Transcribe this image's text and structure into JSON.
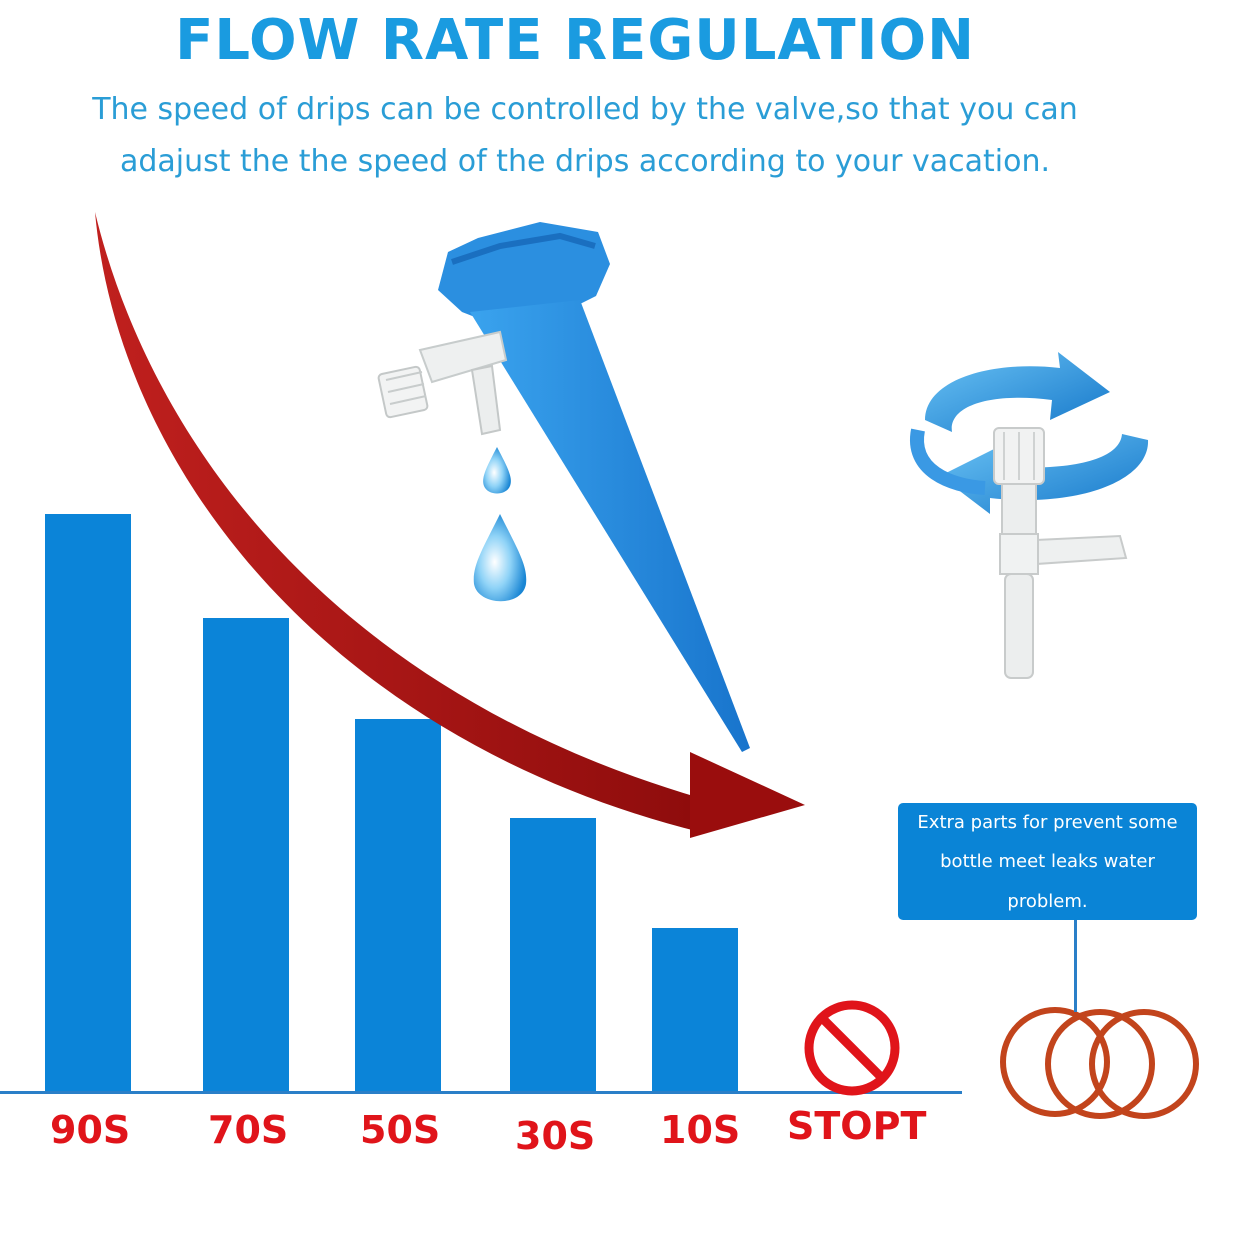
{
  "header": {
    "title": "FLOW RATE REGULATION",
    "subtitle_line1": "The speed of drips can be controlled by the valve,so that you can",
    "subtitle_line2": "adajust the the speed of the drips according to your vacation."
  },
  "chart": {
    "labels": [
      "90S",
      "70S",
      "50S",
      "30S",
      "10S",
      "STOPT"
    ]
  },
  "callout": {
    "line1": "Extra parts for prevent some",
    "line2": "bottle meet leaks water",
    "line3": "problem."
  },
  "colors": {
    "bar": "#0b84d8",
    "label": "#e0141a",
    "arrow": "#a30f0f",
    "title": "#1a9be0"
  }
}
